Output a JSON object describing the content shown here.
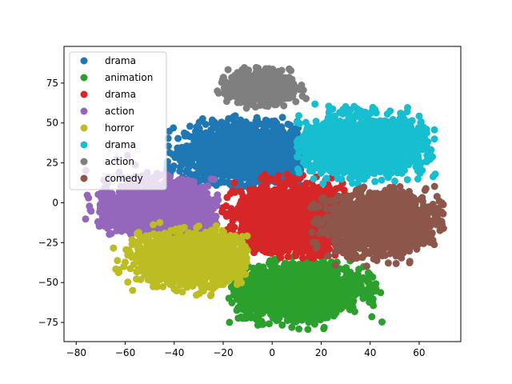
{
  "chart_data": {
    "type": "scatter",
    "title": "",
    "xlabel": "",
    "ylabel": "",
    "xlim": [
      -85,
      77
    ],
    "ylim": [
      -87,
      98
    ],
    "xticks": [
      -80,
      -60,
      -40,
      -20,
      0,
      20,
      40,
      60
    ],
    "yticks": [
      -75,
      -50,
      -25,
      0,
      25,
      50,
      75
    ],
    "grid": false,
    "legend_position": "top-left",
    "series": [
      {
        "name": "drama",
        "color": "#1f77b4",
        "cluster": {
          "center": [
            -10,
            31
          ],
          "spread": [
            20,
            14
          ],
          "angle": 0,
          "x_range": [
            -45,
            12
          ],
          "y_range": [
            10,
            56
          ],
          "count": 1800
        }
      },
      {
        "name": "animation",
        "color": "#2ca02c",
        "cluster": {
          "center": [
            10,
            -55
          ],
          "spread": [
            20,
            13
          ],
          "angle": 8,
          "x_range": [
            -18,
            45
          ],
          "y_range": [
            -80,
            -30
          ],
          "count": 1800
        }
      },
      {
        "name": "drama",
        "color": "#d62728",
        "cluster": {
          "center": [
            8,
            -10
          ],
          "spread": [
            18,
            17
          ],
          "angle": 0,
          "x_range": [
            -22,
            30
          ],
          "y_range": [
            -35,
            18
          ],
          "count": 1800
        }
      },
      {
        "name": "action",
        "color": "#9467bd",
        "cluster": {
          "center": [
            -45,
            -5
          ],
          "spread": [
            17,
            14
          ],
          "angle": -12,
          "x_range": [
            -80,
            -22
          ],
          "y_range": [
            -20,
            33
          ],
          "count": 1800
        }
      },
      {
        "name": "horror",
        "color": "#bcbd22",
        "cluster": {
          "center": [
            -32,
            -35
          ],
          "spread": [
            18,
            12
          ],
          "angle": 0,
          "x_range": [
            -65,
            -10
          ],
          "y_range": [
            -62,
            -12
          ],
          "count": 1800
        }
      },
      {
        "name": "drama",
        "color": "#17becf",
        "cluster": {
          "center": [
            37,
            36
          ],
          "spread": [
            20,
            14
          ],
          "angle": 0,
          "x_range": [
            10,
            67
          ],
          "y_range": [
            12,
            62
          ],
          "count": 1800
        }
      },
      {
        "name": "action",
        "color": "#7f7f7f",
        "cluster": {
          "center": [
            -5,
            72
          ],
          "spread": [
            10,
            8
          ],
          "angle": 0,
          "x_range": [
            -23,
            15
          ],
          "y_range": [
            50,
            89
          ],
          "count": 800
        }
      },
      {
        "name": "comedy",
        "color": "#8c564b",
        "cluster": {
          "center": [
            45,
            -12
          ],
          "spread": [
            17,
            14
          ],
          "angle": 10,
          "x_range": [
            15,
            70
          ],
          "y_range": [
            -52,
            12
          ],
          "count": 1800
        }
      }
    ]
  }
}
